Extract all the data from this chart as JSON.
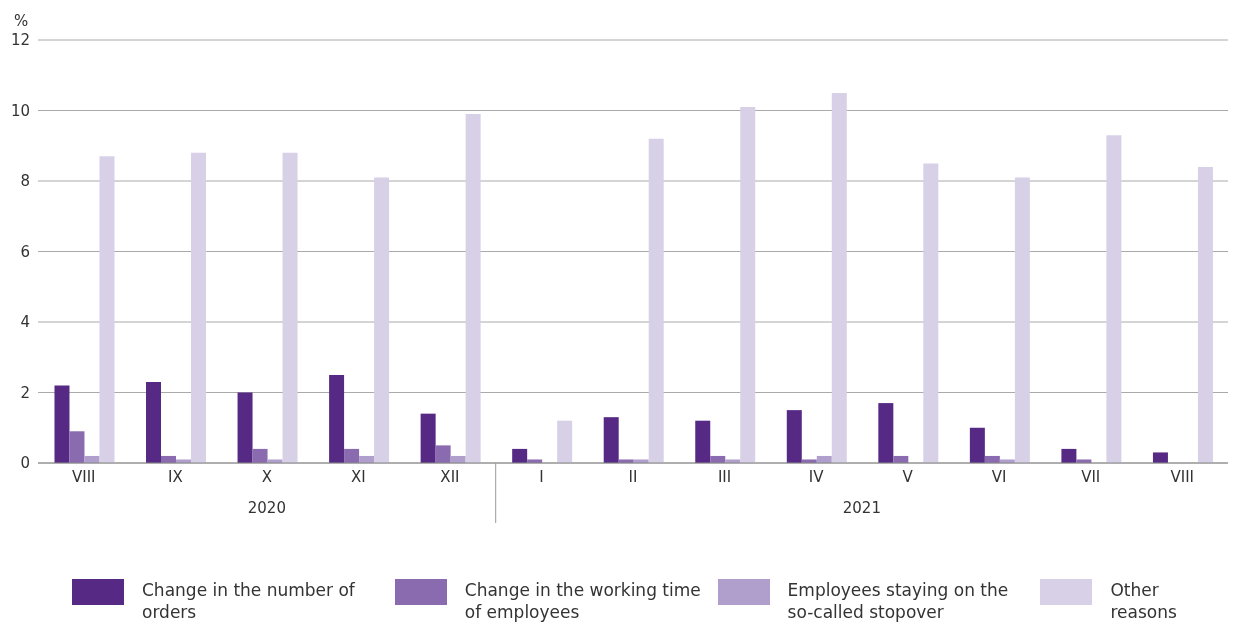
{
  "chart_data": {
    "type": "bar",
    "ylabel": "%",
    "categories": [
      "VIII",
      "IX",
      "X",
      "XI",
      "XII",
      "I",
      "II",
      "III",
      "IV",
      "V",
      "VI",
      "VII",
      "VIII"
    ],
    "series": [
      {
        "name": "Change in the number of orders",
        "color": "#562a84",
        "values": [
          2.2,
          2.3,
          2.0,
          2.5,
          1.4,
          0.4,
          1.3,
          1.2,
          1.5,
          1.7,
          1.0,
          0.4,
          0.3
        ]
      },
      {
        "name": "Change in the working time of employees",
        "color": "#8b6bb0",
        "values": [
          0.9,
          0.2,
          0.4,
          0.4,
          0.5,
          0.1,
          0.1,
          0.2,
          0.1,
          0.2,
          0.2,
          0.1,
          0
        ]
      },
      {
        "name": "Employees staying on the so-called stopover",
        "color": "#b09fcd",
        "values": [
          0.2,
          0.1,
          0.1,
          0.2,
          0.2,
          0,
          0.1,
          0.1,
          0.2,
          0,
          0.1,
          0,
          0
        ]
      },
      {
        "name": "Other reasons",
        "color": "#d8d0e6",
        "values": [
          8.7,
          8.8,
          8.8,
          8.1,
          9.9,
          1.2,
          9.2,
          10.1,
          10.5,
          8.5,
          8.1,
          9.3,
          8.4
        ]
      }
    ],
    "ylim": [
      0,
      12
    ],
    "yticks": [
      0,
      2,
      4,
      6,
      8,
      10,
      12
    ],
    "grid": "y",
    "legend": "bottom",
    "annotations": [
      "2020",
      "2021"
    ]
  }
}
